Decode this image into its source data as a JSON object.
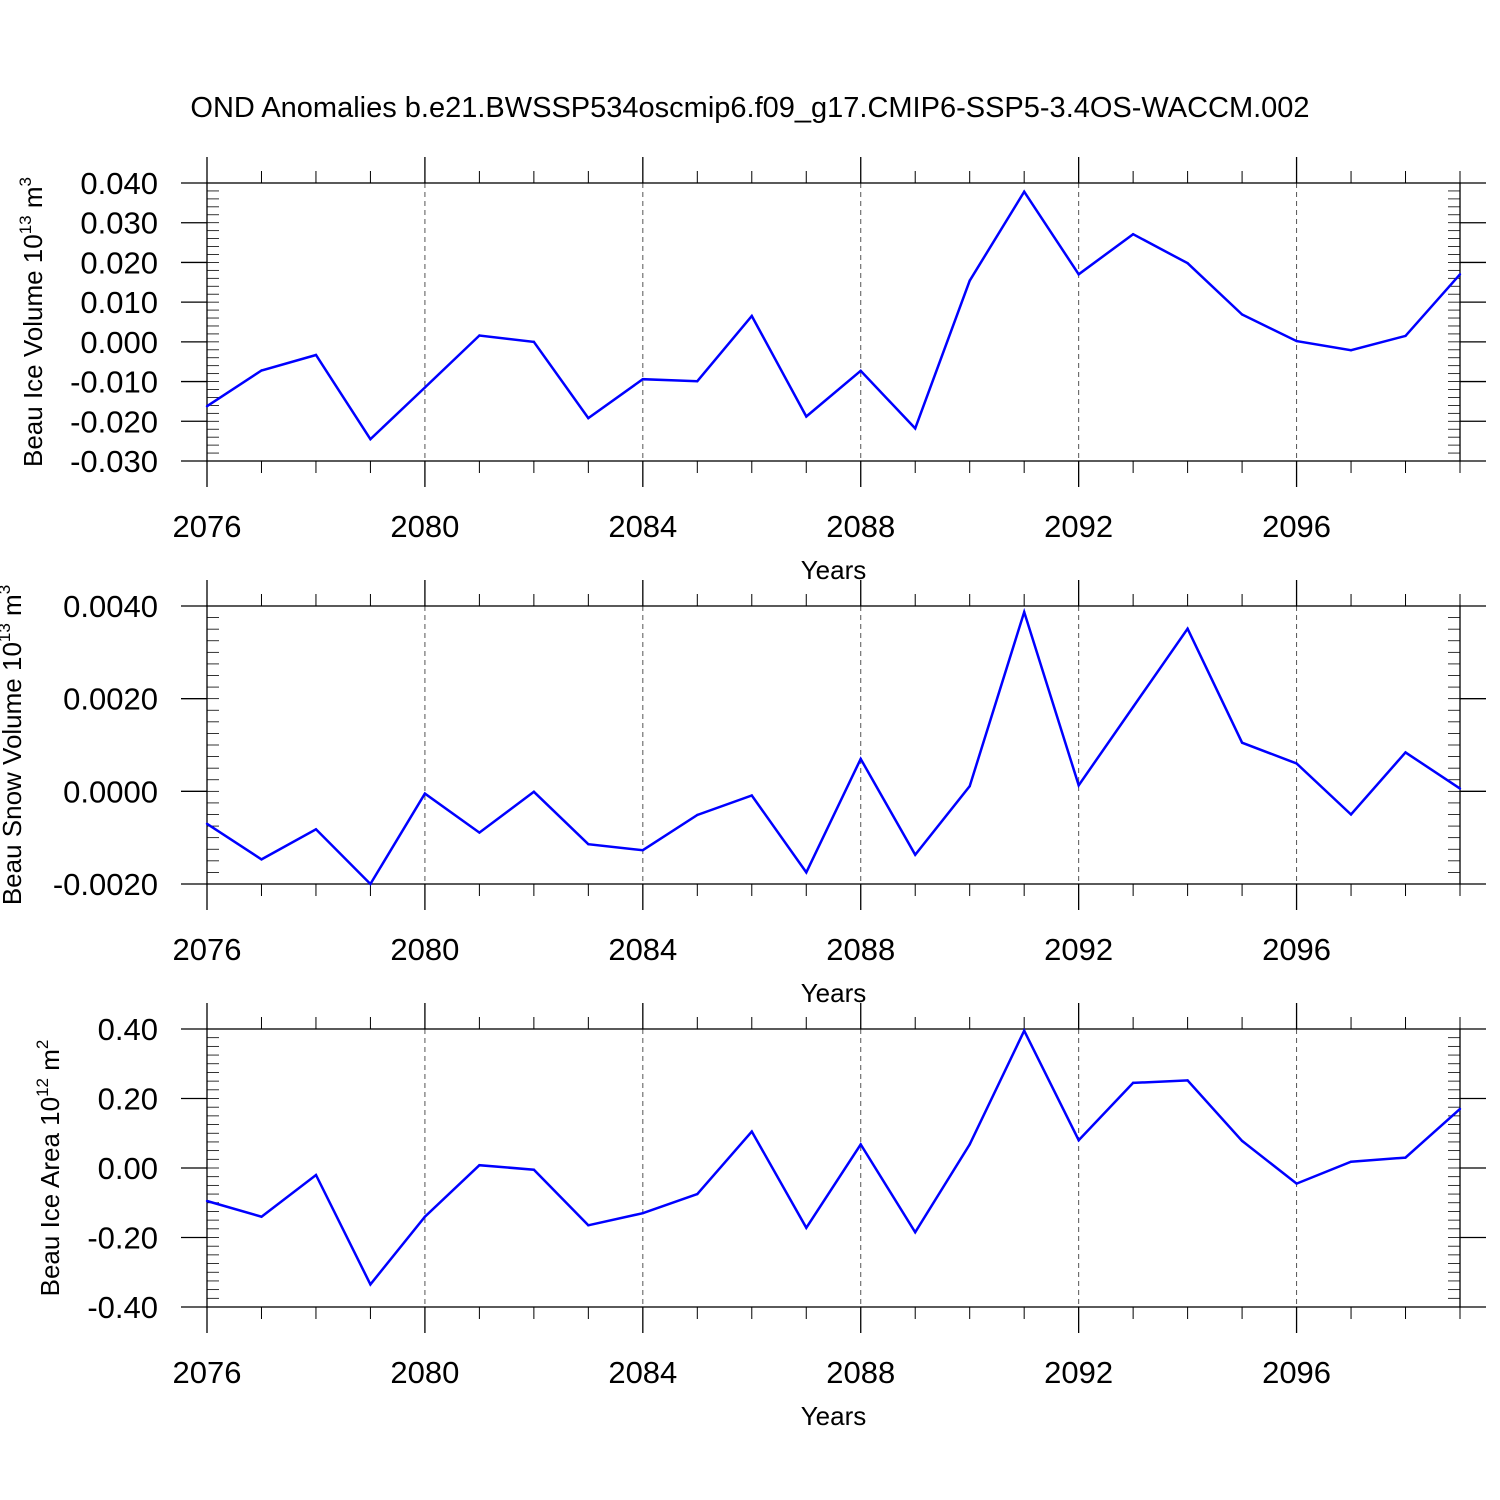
{
  "title": "OND Anomalies b.e21.BWSSP534oscmip6.f09_g17.CMIP6-SSP5-3.4OS-WACCM.002",
  "colors": {
    "line": "#0000ff",
    "axis": "#000000",
    "grid": "#555555"
  },
  "chart_data": [
    {
      "type": "line",
      "title": "",
      "xlabel": "Years",
      "ylabel": "Beau Ice Volume 10",
      "ylabel_exp": "13",
      "ylabel_unit": " m",
      "ylabel_unit_exp": "3",
      "xlim": [
        2076,
        2099
      ],
      "ylim": [
        -0.03,
        0.04
      ],
      "xticks": [
        2076,
        2080,
        2084,
        2088,
        2092,
        2096
      ],
      "xtick_labels": [
        "2076",
        "2080",
        "2084",
        "2088",
        "2092",
        "2096"
      ],
      "yticks": [
        -0.03,
        -0.02,
        -0.01,
        0.0,
        0.01,
        0.02,
        0.03,
        0.04
      ],
      "ytick_labels": [
        "-0.030",
        "-0.020",
        "-0.010",
        "0.000",
        "0.010",
        "0.020",
        "0.030",
        "0.040"
      ],
      "grid": "vertical dashed at major x ticks",
      "series": [
        {
          "name": "Beau Ice Volume",
          "x": [
            2076,
            2077,
            2078,
            2079,
            2080,
            2081,
            2082,
            2083,
            2084,
            2085,
            2086,
            2087,
            2088,
            2089,
            2090,
            2091,
            2092,
            2093,
            2094,
            2095,
            2096,
            2097,
            2098,
            2099
          ],
          "values": [
            -0.0162,
            -0.0072,
            -0.0033,
            -0.0245,
            -0.0115,
            0.0016,
            0.0,
            -0.0192,
            -0.0094,
            -0.0099,
            0.0065,
            -0.0188,
            -0.0073,
            -0.0218,
            0.0154,
            0.0378,
            0.017,
            0.0271,
            0.0198,
            0.0069,
            0.0002,
            -0.0021,
            0.0015,
            0.017
          ]
        }
      ]
    },
    {
      "type": "line",
      "title": "",
      "xlabel": "Years",
      "ylabel": "Beau Snow Volume 10",
      "ylabel_exp": "13",
      "ylabel_unit": " m",
      "ylabel_unit_exp": "3",
      "xlim": [
        2076,
        2099
      ],
      "ylim": [
        -0.002,
        0.004
      ],
      "xticks": [
        2076,
        2080,
        2084,
        2088,
        2092,
        2096
      ],
      "xtick_labels": [
        "2076",
        "2080",
        "2084",
        "2088",
        "2092",
        "2096"
      ],
      "yticks": [
        -0.002,
        0.0,
        0.002,
        0.004
      ],
      "ytick_labels": [
        "-0.0020",
        "0.0000",
        "0.0020",
        "0.0040"
      ],
      "grid": "vertical dashed at major x ticks",
      "series": [
        {
          "name": "Beau Snow Volume",
          "x": [
            2076,
            2077,
            2078,
            2079,
            2080,
            2081,
            2082,
            2083,
            2084,
            2085,
            2086,
            2087,
            2088,
            2089,
            2090,
            2091,
            2092,
            2093,
            2094,
            2095,
            2096,
            2097,
            2098,
            2099
          ],
          "values": [
            -0.0007,
            -0.00147,
            -0.00082,
            -0.002,
            -5e-05,
            -0.00089,
            -1e-05,
            -0.00114,
            -0.00127,
            -0.00051,
            -9e-05,
            -0.00175,
            0.0007,
            -0.00137,
            0.00011,
            0.00387,
            0.00013,
            0.00182,
            0.00351,
            0.00105,
            0.0006,
            -0.0005,
            0.00084,
            6e-05
          ]
        }
      ]
    },
    {
      "type": "line",
      "title": "",
      "xlabel": "Years",
      "ylabel": "Beau Ice Area 10",
      "ylabel_exp": "12",
      "ylabel_unit": " m",
      "ylabel_unit_exp": "2",
      "xlim": [
        2076,
        2099
      ],
      "ylim": [
        -0.4,
        0.4
      ],
      "xticks": [
        2076,
        2080,
        2084,
        2088,
        2092,
        2096
      ],
      "xtick_labels": [
        "2076",
        "2080",
        "2084",
        "2088",
        "2092",
        "2096"
      ],
      "yticks": [
        -0.4,
        -0.2,
        0.0,
        0.2,
        0.4
      ],
      "ytick_labels": [
        "-0.40",
        "-0.20",
        "0.00",
        "0.20",
        "0.40"
      ],
      "grid": "vertical dashed at major x ticks",
      "series": [
        {
          "name": "Beau Ice Area",
          "x": [
            2076,
            2077,
            2078,
            2079,
            2080,
            2081,
            2082,
            2083,
            2084,
            2085,
            2086,
            2087,
            2088,
            2089,
            2090,
            2091,
            2092,
            2093,
            2094,
            2095,
            2096,
            2097,
            2098,
            2099
          ],
          "values": [
            -0.095,
            -0.14,
            -0.02,
            -0.335,
            -0.14,
            0.008,
            -0.005,
            -0.165,
            -0.13,
            -0.075,
            0.105,
            -0.172,
            0.068,
            -0.185,
            0.068,
            0.395,
            0.08,
            0.245,
            0.252,
            0.078,
            -0.045,
            0.018,
            0.03,
            0.17
          ]
        }
      ]
    }
  ]
}
